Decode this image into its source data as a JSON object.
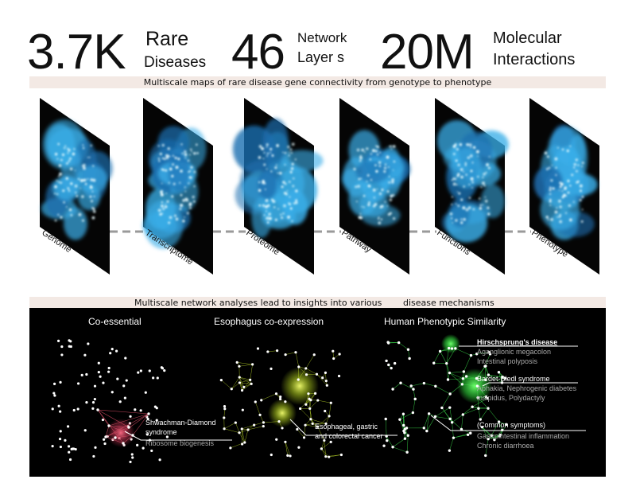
{
  "header": {
    "stat1": {
      "value": "3.7K",
      "label_line1": "Rare",
      "label_line2": "Diseases"
    },
    "stat2": {
      "value": "46",
      "label_line1": "Network",
      "label_line2": "Layer s"
    },
    "stat3": {
      "value": "20M",
      "label_line1": "Molecular",
      "label_line2": "Interactions"
    }
  },
  "band1": "Multiscale maps of rare disease gene connectivity from genotype to phenotype",
  "layers": [
    "Genome",
    "Transcriptome",
    "Proteome",
    "Pathway",
    "Functions",
    "Phenotype"
  ],
  "band2_left": "Multiscale network analyses lead to insights into various",
  "band2_right": "disease mechanisms",
  "panels": {
    "coessential": {
      "title": "Co-essential",
      "ann_line1": "Shwachman-Diamond",
      "ann_line2": "syndrome",
      "ann_sub": "Ribosome biogenesis"
    },
    "esophagus": {
      "title": "Esophagus co-expression",
      "ann_line1": "Esophageal, gastric",
      "ann_line2": "and colorectal cancer"
    },
    "phenotypic": {
      "title": "Human Phenotypic Similarity",
      "d1_title": "Hirschsprung's disease",
      "d1_l1": "Aganglionic megacolon",
      "d1_l2": "Intestinal polyposis",
      "d2_title": "Bardet-Biedl syndrome",
      "d2_l1": "Aphakia, Nephrogenic diabetes",
      "d2_l2": "insipidus, Polydactyly",
      "d3_title": "(Common symptoms)",
      "d3_l1": "Gastrointestinal inflammation",
      "d3_l2": "Chronic diarrhoea"
    }
  },
  "colors": {
    "band_bg": "#f3e9e4",
    "layer_blue": "#3aaee8",
    "coessential_accent": "#e0506a",
    "esophagus_accent": "#c8e62a",
    "phenotype_accent": "#39d84a"
  }
}
